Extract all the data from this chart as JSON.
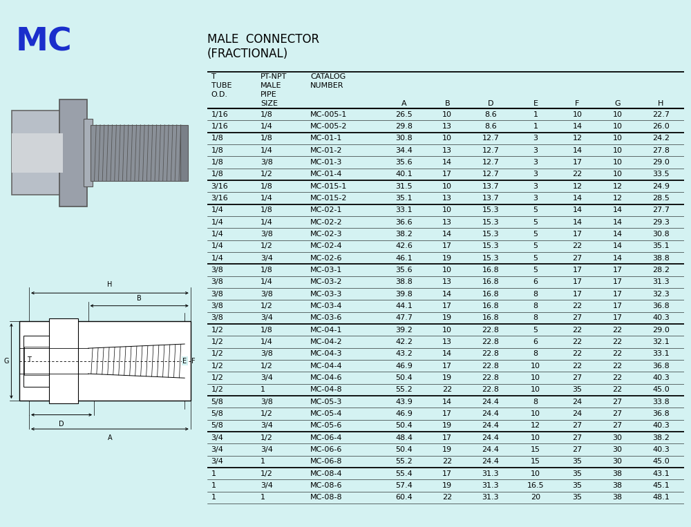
{
  "title_line1": "MALE  CONNECTOR",
  "title_line2": "(FRACTIONAL)",
  "bg_color": "#d4f2f2",
  "mc_label": "MC",
  "mc_color": "#1a2ecc",
  "rows": [
    [
      "1/16",
      "1/8",
      "MC-005-1",
      "26.5",
      "10",
      "8.6",
      "1",
      "10",
      "10",
      "22.7"
    ],
    [
      "1/16",
      "1/4",
      "MC-005-2",
      "29.8",
      "13",
      "8.6",
      "1",
      "14",
      "10",
      "26.0"
    ],
    [
      "1/8",
      "1/8",
      "MC-01-1",
      "30.8",
      "10",
      "12.7",
      "3",
      "12",
      "10",
      "24.2"
    ],
    [
      "1/8",
      "1/4",
      "MC-01-2",
      "34.4",
      "13",
      "12.7",
      "3",
      "14",
      "10",
      "27.8"
    ],
    [
      "1/8",
      "3/8",
      "MC-01-3",
      "35.6",
      "14",
      "12.7",
      "3",
      "17",
      "10",
      "29.0"
    ],
    [
      "1/8",
      "1/2",
      "MC-01-4",
      "40.1",
      "17",
      "12.7",
      "3",
      "22",
      "10",
      "33.5"
    ],
    [
      "3/16",
      "1/8",
      "MC-015-1",
      "31.5",
      "10",
      "13.7",
      "3",
      "12",
      "12",
      "24.9"
    ],
    [
      "3/16",
      "1/4",
      "MC-015-2",
      "35.1",
      "13",
      "13.7",
      "3",
      "14",
      "12",
      "28.5"
    ],
    [
      "1/4",
      "1/8",
      "MC-02-1",
      "33.1",
      "10",
      "15.3",
      "5",
      "14",
      "14",
      "27.7"
    ],
    [
      "1/4",
      "1/4",
      "MC-02-2",
      "36.6",
      "13",
      "15.3",
      "5",
      "14",
      "14",
      "29.3"
    ],
    [
      "1/4",
      "3/8",
      "MC-02-3",
      "38.2",
      "14",
      "15.3",
      "5",
      "17",
      "14",
      "30.8"
    ],
    [
      "1/4",
      "1/2",
      "MC-02-4",
      "42.6",
      "17",
      "15.3",
      "5",
      "22",
      "14",
      "35.1"
    ],
    [
      "1/4",
      "3/4",
      "MC-02-6",
      "46.1",
      "19",
      "15.3",
      "5",
      "27",
      "14",
      "38.8"
    ],
    [
      "3/8",
      "1/8",
      "MC-03-1",
      "35.6",
      "10",
      "16.8",
      "5",
      "17",
      "17",
      "28.2"
    ],
    [
      "3/8",
      "1/4",
      "MC-03-2",
      "38.8",
      "13",
      "16.8",
      "6",
      "17",
      "17",
      "31.3"
    ],
    [
      "3/8",
      "3/8",
      "MC-03-3",
      "39.8",
      "14",
      "16.8",
      "8",
      "17",
      "17",
      "32.3"
    ],
    [
      "3/8",
      "1/2",
      "MC-03-4",
      "44.1",
      "17",
      "16.8",
      "8",
      "22",
      "17",
      "36.8"
    ],
    [
      "3/8",
      "3/4",
      "MC-03-6",
      "47.7",
      "19",
      "16.8",
      "8",
      "27",
      "17",
      "40.3"
    ],
    [
      "1/2",
      "1/8",
      "MC-04-1",
      "39.2",
      "10",
      "22.8",
      "5",
      "22",
      "22",
      "29.0"
    ],
    [
      "1/2",
      "1/4",
      "MC-04-2",
      "42.2",
      "13",
      "22.8",
      "6",
      "22",
      "22",
      "32.1"
    ],
    [
      "1/2",
      "3/8",
      "MC-04-3",
      "43.2",
      "14",
      "22.8",
      "8",
      "22",
      "22",
      "33.1"
    ],
    [
      "1/2",
      "1/2",
      "MC-04-4",
      "46.9",
      "17",
      "22.8",
      "10",
      "22",
      "22",
      "36.8"
    ],
    [
      "1/2",
      "3/4",
      "MC-04-6",
      "50.4",
      "19",
      "22.8",
      "10",
      "27",
      "22",
      "40.3"
    ],
    [
      "1/2",
      "1",
      "MC-04-8",
      "55.2",
      "22",
      "22.8",
      "10",
      "35",
      "22",
      "45.0"
    ],
    [
      "5/8",
      "3/8",
      "MC-05-3",
      "43.9",
      "14",
      "24.4",
      "8",
      "24",
      "27",
      "33.8"
    ],
    [
      "5/8",
      "1/2",
      "MC-05-4",
      "46.9",
      "17",
      "24.4",
      "10",
      "24",
      "27",
      "36.8"
    ],
    [
      "5/8",
      "3/4",
      "MC-05-6",
      "50.4",
      "19",
      "24.4",
      "12",
      "27",
      "27",
      "40.3"
    ],
    [
      "3/4",
      "1/2",
      "MC-06-4",
      "48.4",
      "17",
      "24.4",
      "10",
      "27",
      "30",
      "38.2"
    ],
    [
      "3/4",
      "3/4",
      "MC-06-6",
      "50.4",
      "19",
      "24.4",
      "15",
      "27",
      "30",
      "40.3"
    ],
    [
      "3/4",
      "1",
      "MC-06-8",
      "55.2",
      "22",
      "24.4",
      "15",
      "35",
      "30",
      "45.0"
    ],
    [
      "1",
      "1/2",
      "MC-08-4",
      "55.4",
      "17",
      "31.3",
      "10",
      "35",
      "38",
      "43.1"
    ],
    [
      "1",
      "3/4",
      "MC-08-6",
      "57.4",
      "19",
      "31.3",
      "16.5",
      "35",
      "38",
      "45.1"
    ],
    [
      "1",
      "1",
      "MC-08-8",
      "60.4",
      "22",
      "31.3",
      "20",
      "35",
      "38",
      "48.1"
    ]
  ],
  "group_separators_after": [
    1,
    5,
    7,
    12,
    17,
    23,
    26,
    29
  ],
  "font_size": 8.0,
  "header_font_size": 8.0
}
